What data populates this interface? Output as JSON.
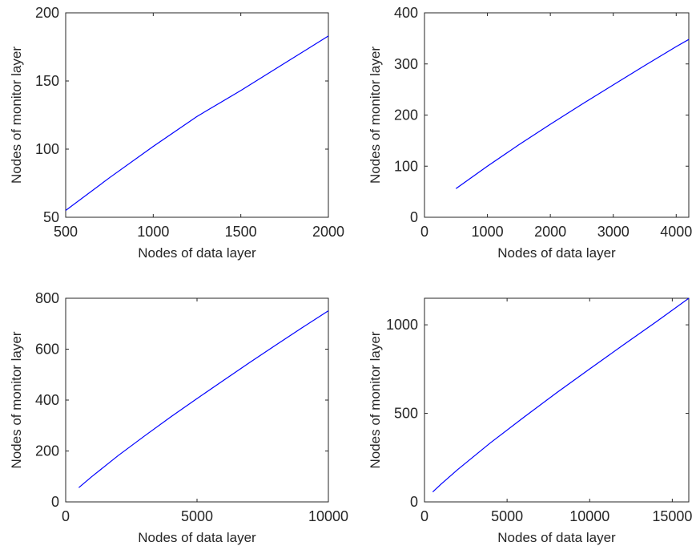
{
  "chart_data": [
    {
      "type": "line",
      "xlabel": "Nodes of data layer",
      "ylabel": "Nodes of monitor layer",
      "xlim": [
        500,
        2000
      ],
      "ylim": [
        50,
        200
      ],
      "xticks": [
        "500",
        "1000",
        "1500",
        "2000"
      ],
      "yticks": [
        "50",
        "100",
        "150",
        "200"
      ],
      "grid": false,
      "series": [
        {
          "color": "#0000ff",
          "x": [
            500,
            750,
            1000,
            1250,
            1500,
            1750,
            2000
          ],
          "y": [
            55,
            79,
            102,
            124,
            143,
            163,
            183
          ]
        }
      ]
    },
    {
      "type": "line",
      "xlabel": "Nodes of data layer",
      "ylabel": "Nodes of monitor layer",
      "xlim": [
        0,
        4200
      ],
      "ylim": [
        0,
        400
      ],
      "xticks": [
        "0",
        "1000",
        "2000",
        "3000",
        "4000"
      ],
      "yticks": [
        "0",
        "100",
        "200",
        "300",
        "400"
      ],
      "grid": false,
      "series": [
        {
          "color": "#0000ff",
          "x": [
            500,
            1000,
            1500,
            2000,
            2500,
            3000,
            3500,
            4000,
            4200
          ],
          "y": [
            56,
            100,
            142,
            182,
            221,
            259,
            297,
            334,
            348
          ]
        }
      ]
    },
    {
      "type": "line",
      "xlabel": "Nodes of data layer",
      "ylabel": "Nodes of monitor layer",
      "xlim": [
        0,
        10000
      ],
      "ylim": [
        0,
        800
      ],
      "xticks": [
        "0",
        "5000",
        "10000"
      ],
      "yticks": [
        "0",
        "200",
        "400",
        "600",
        "800"
      ],
      "grid": false,
      "series": [
        {
          "color": "#0000ff",
          "x": [
            500,
            1000,
            2000,
            3000,
            4000,
            5000,
            6000,
            7000,
            8000,
            9000,
            10000
          ],
          "y": [
            56,
            100,
            182,
            259,
            334,
            406,
            477,
            547,
            616,
            684,
            751
          ]
        }
      ]
    },
    {
      "type": "line",
      "xlabel": "Nodes of data layer",
      "ylabel": "Nodes of monitor layer",
      "xlim": [
        0,
        16000
      ],
      "ylim": [
        0,
        1150
      ],
      "xticks": [
        "0",
        "5000",
        "10000",
        "15000"
      ],
      "yticks": [
        "0",
        "500",
        "1000"
      ],
      "grid": false,
      "series": [
        {
          "color": "#0000ff",
          "x": [
            500,
            1000,
            2000,
            4000,
            6000,
            8000,
            10000,
            12000,
            14000,
            16000
          ],
          "y": [
            56,
            100,
            182,
            334,
            477,
            616,
            751,
            884,
            1015,
            1150
          ]
        }
      ]
    }
  ]
}
